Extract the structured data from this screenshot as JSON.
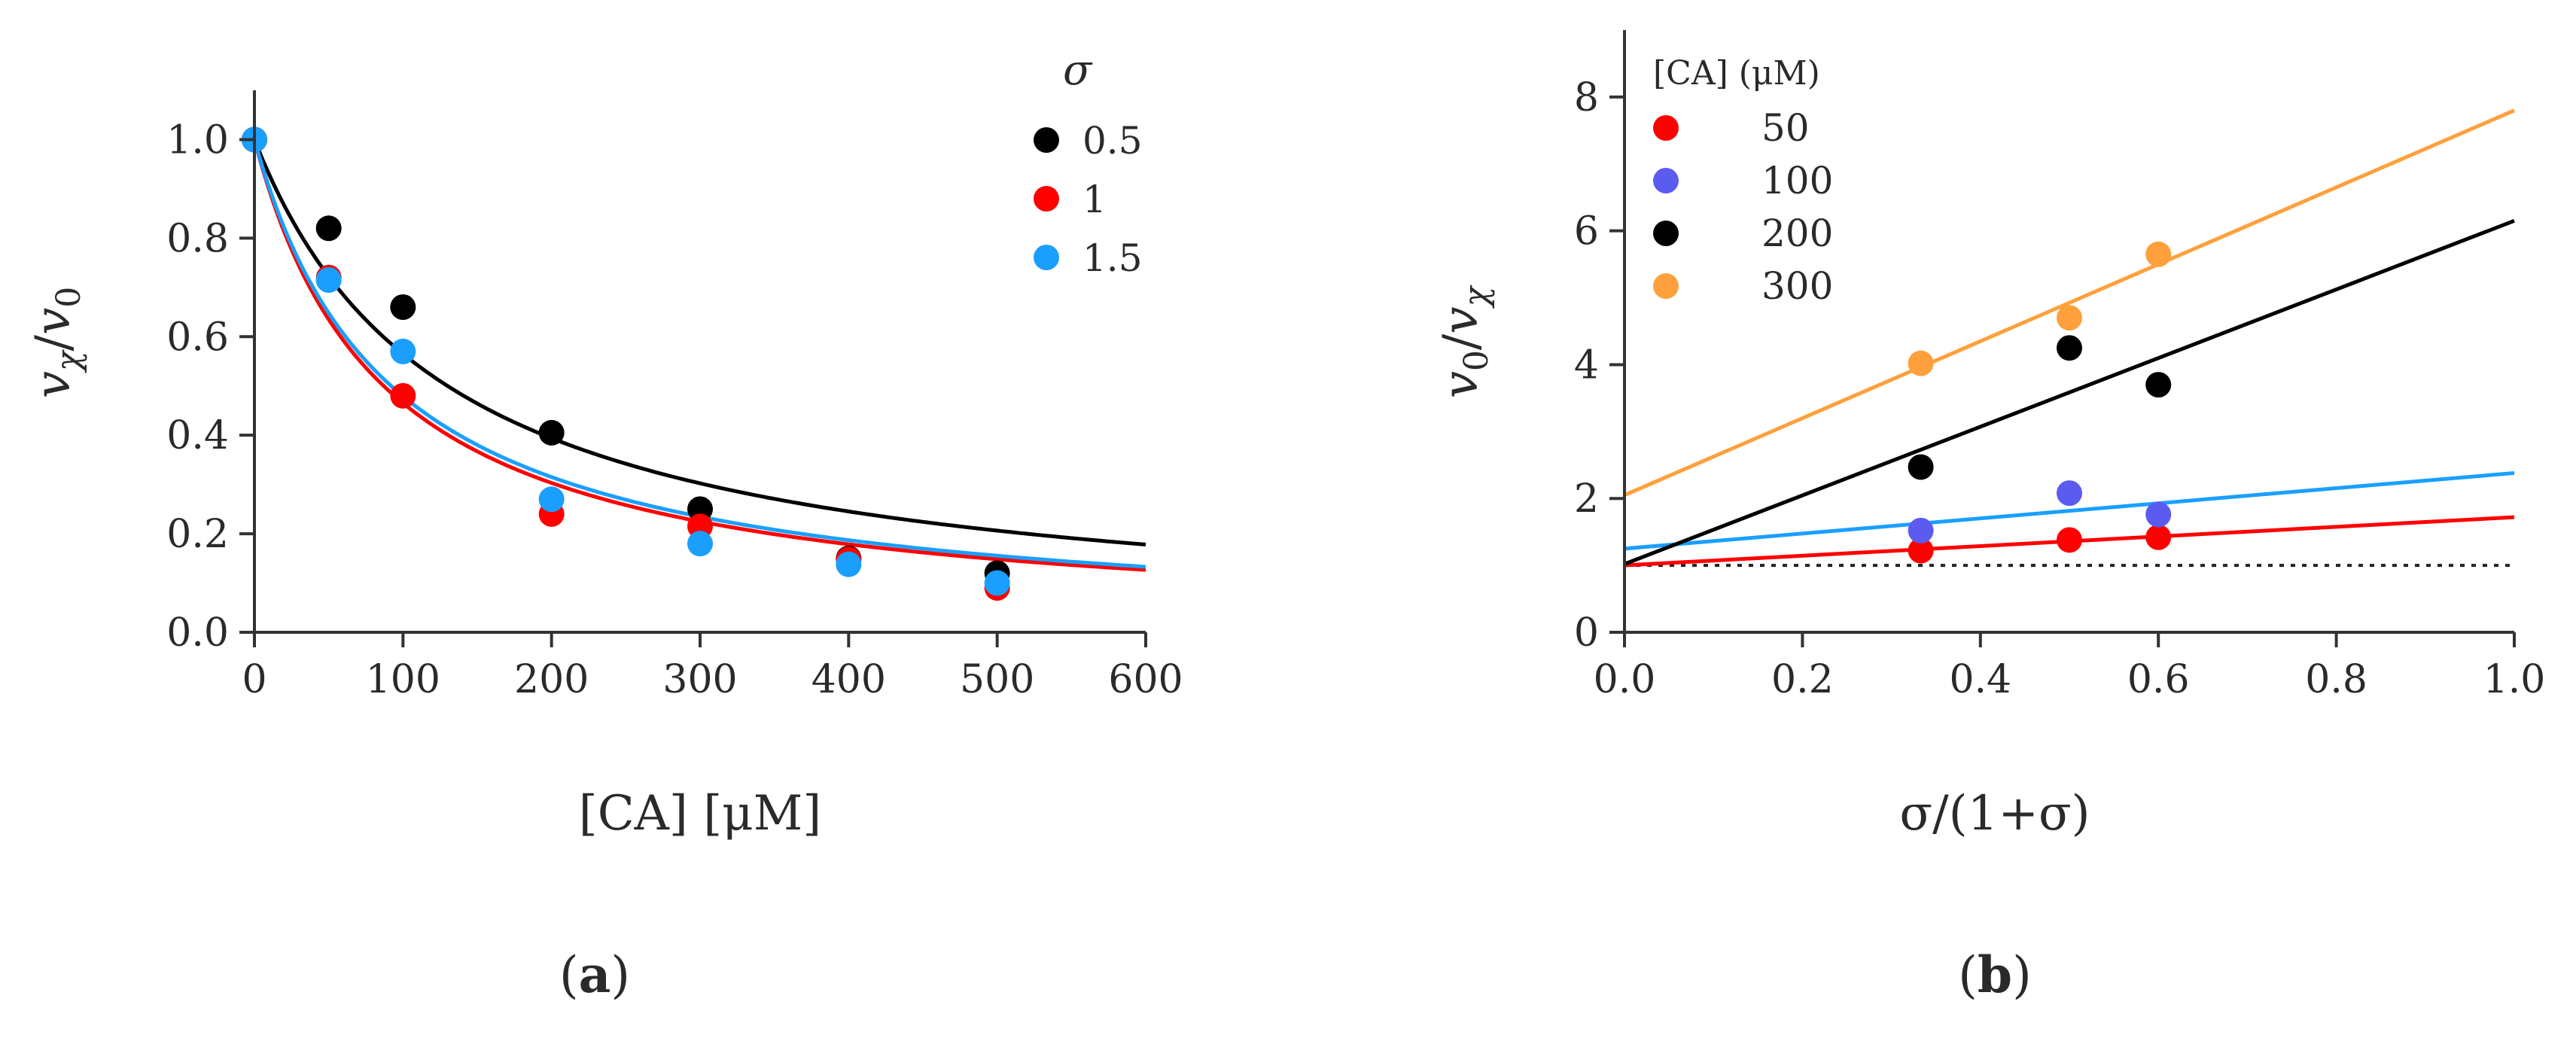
{
  "chart_data": [
    {
      "type": "scatter",
      "panel_label": "(a)",
      "panel_letter": "a",
      "xlabel": "[CA] [μM]",
      "ylabel_parts": [
        "v",
        "χ",
        "/",
        "v",
        "0"
      ],
      "xlim": [
        0,
        600
      ],
      "ylim": [
        0,
        1.1
      ],
      "xticks": [
        0,
        100,
        200,
        300,
        400,
        500,
        600
      ],
      "xtick_labels": [
        "0",
        "100",
        "200",
        "300",
        "400",
        "500",
        "600"
      ],
      "yticks": [
        0.0,
        0.2,
        0.4,
        0.6,
        0.8,
        1.0
      ],
      "ytick_labels": [
        "0.0",
        "0.2",
        "0.4",
        "0.6",
        "0.8",
        "1.0"
      ],
      "legend_title": "σ",
      "legend_position": "top-right",
      "series": [
        {
          "name": "0.5",
          "color": "#000000",
          "points": [
            [
              0,
              1.0
            ],
            [
              50,
              0.82
            ],
            [
              100,
              0.66
            ],
            [
              200,
              0.405
            ],
            [
              300,
              0.25
            ],
            [
              400,
              0.15
            ],
            [
              500,
              0.12
            ]
          ],
          "fit_k": 130
        },
        {
          "name": "1",
          "color": "#ff0000",
          "points": [
            [
              0,
              1.0
            ],
            [
              50,
              0.72
            ],
            [
              100,
              0.48
            ],
            [
              200,
              0.24
            ],
            [
              300,
              0.215
            ],
            [
              400,
              0.148
            ],
            [
              500,
              0.09
            ]
          ],
          "fit_k": 87
        },
        {
          "name": "1.5",
          "color": "#1a9fff",
          "points": [
            [
              0,
              1.0
            ],
            [
              50,
              0.715
            ],
            [
              100,
              0.57
            ],
            [
              200,
              0.27
            ],
            [
              300,
              0.18
            ],
            [
              400,
              0.138
            ],
            [
              500,
              0.1
            ]
          ],
          "fit_k": 92
        }
      ]
    },
    {
      "type": "scatter",
      "panel_label": "(b)",
      "panel_letter": "b",
      "xlabel": "σ/(1+σ)",
      "ylabel_parts": [
        "v",
        "0",
        "/",
        "v",
        "χ"
      ],
      "xlim": [
        0,
        1
      ],
      "ylim": [
        0,
        9
      ],
      "xticks": [
        0.0,
        0.2,
        0.4,
        0.6,
        0.8,
        1.0
      ],
      "xtick_labels": [
        "0.0",
        "0.2",
        "0.4",
        "0.6",
        "0.8",
        "1.0"
      ],
      "yticks": [
        0,
        2,
        4,
        6,
        8
      ],
      "ytick_labels": [
        "0",
        "2",
        "4",
        "6",
        "8"
      ],
      "legend_title": "[CA] (μM)",
      "legend_position": "top-left",
      "reference_line_y": 1,
      "series": [
        {
          "name": "50",
          "color": "#ff0000",
          "points": [
            [
              0.333,
              1.22
            ],
            [
              0.5,
              1.38
            ],
            [
              0.6,
              1.42
            ]
          ],
          "fit": [
            1.0,
            1.72
          ]
        },
        {
          "name": "100",
          "color": "#5b5bf0",
          "points": [
            [
              0.333,
              1.52
            ],
            [
              0.5,
              2.08
            ],
            [
              0.6,
              1.76
            ]
          ],
          "fit": [
            1.25,
            2.38
          ]
        },
        {
          "name": "200",
          "color": "#000000",
          "points": [
            [
              0.333,
              2.47
            ],
            [
              0.5,
              4.25
            ],
            [
              0.6,
              3.7
            ]
          ],
          "fit": [
            1.02,
            6.15
          ]
        },
        {
          "name": "300",
          "color": "#ffa03c",
          "points": [
            [
              0.333,
              4.02
            ],
            [
              0.5,
              4.7
            ],
            [
              0.6,
              5.65
            ]
          ],
          "fit": [
            2.05,
            7.8
          ]
        }
      ],
      "fit_colors": [
        "#ff0000",
        "#1a9fff",
        "#000000",
        "#ffa03c"
      ]
    }
  ]
}
